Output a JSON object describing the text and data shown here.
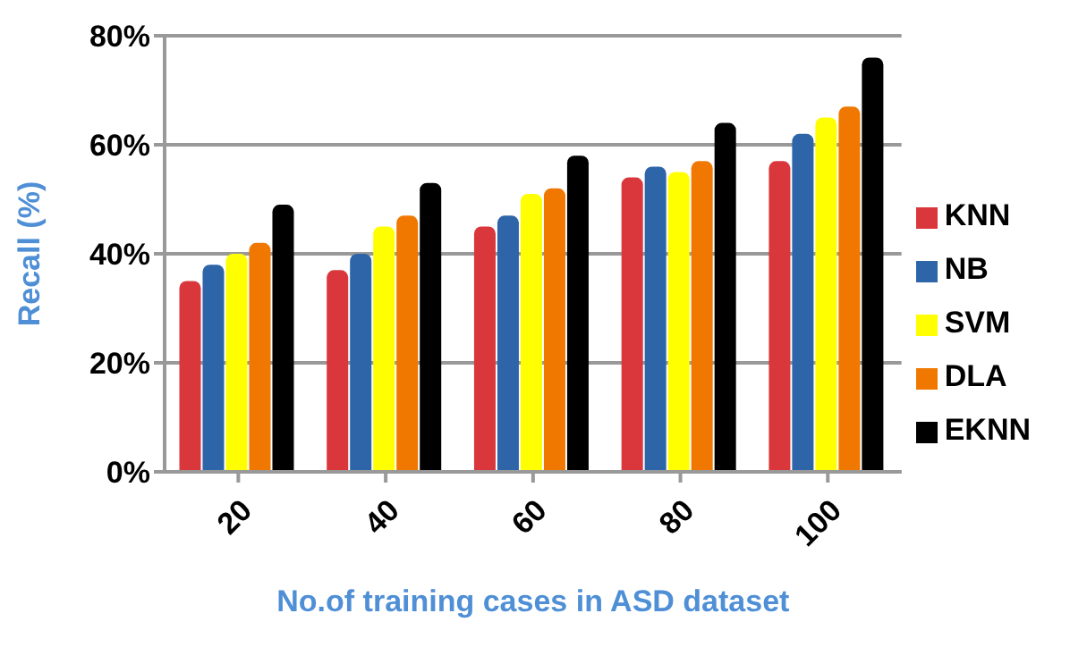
{
  "chart_data": {
    "type": "bar",
    "xlabel": "No.of  training cases in ASD dataset",
    "ylabel": "Recall (%)",
    "categories": [
      "20",
      "40",
      "60",
      "80",
      "100"
    ],
    "series": [
      {
        "name": "KNN",
        "color": "#d9373b",
        "values": [
          35,
          37,
          45,
          54,
          57
        ]
      },
      {
        "name": "NB",
        "color": "#2e64a8",
        "values": [
          38,
          40,
          47,
          56,
          62
        ]
      },
      {
        "name": "SVM",
        "color": "#ffff00",
        "values": [
          40,
          45,
          51,
          55,
          65
        ]
      },
      {
        "name": "DLA",
        "color": "#f07800",
        "values": [
          42,
          47,
          52,
          57,
          67
        ]
      },
      {
        "name": "EKNN",
        "color": "#000000",
        "values": [
          49,
          53,
          58,
          64,
          76
        ]
      }
    ],
    "ylim": [
      0,
      80
    ],
    "yticks": [
      {
        "value": 0,
        "label": "0%"
      },
      {
        "value": 20,
        "label": "20%"
      },
      {
        "value": 40,
        "label": "40%"
      },
      {
        "value": 60,
        "label": "60%"
      },
      {
        "value": 80,
        "label": "80%"
      }
    ],
    "grid": "y",
    "legend": "right"
  }
}
